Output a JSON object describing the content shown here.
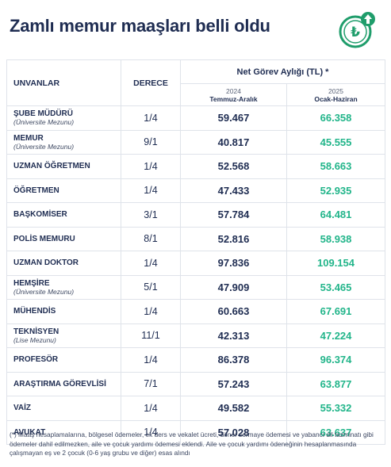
{
  "headline": "Zamlı memur maaşları belli oldu",
  "logo": {
    "icon": "lira-up-arrow-icon",
    "symbol": "₺",
    "color": "#1f9d6b"
  },
  "colors": {
    "title": "#1f2d52",
    "highlight": "#22b58a",
    "border": "#dfe3ea"
  },
  "table": {
    "col_title": "UNVANLAR",
    "col_grade": "DERECE",
    "col_group": "Net Görev Aylığı (TL) *",
    "periods": [
      {
        "year": "2024",
        "range": "Temmuz-Aralık"
      },
      {
        "year": "2025",
        "range": "Ocak-Haziran"
      }
    ],
    "rows": [
      {
        "title": "ŞUBE MÜDÜRÜ",
        "sub": "(Üniversite Mezunu)",
        "grade": "1/4",
        "v2024": "59.467",
        "v2025": "66.358"
      },
      {
        "title": "MEMUR",
        "sub": "(Üniversite Mezunu)",
        "grade": "9/1",
        "v2024": "40.817",
        "v2025": "45.555"
      },
      {
        "title": "UZMAN ÖĞRETMEN",
        "sub": "",
        "grade": "1/4",
        "v2024": "52.568",
        "v2025": "58.663"
      },
      {
        "title": "ÖĞRETMEN",
        "sub": "",
        "grade": "1/4",
        "v2024": "47.433",
        "v2025": "52.935"
      },
      {
        "title": "BAŞKOMİSER",
        "sub": "",
        "grade": "3/1",
        "v2024": "57.784",
        "v2025": "64.481"
      },
      {
        "title": "POLİS MEMURU",
        "sub": "",
        "grade": "8/1",
        "v2024": "52.816",
        "v2025": "58.938"
      },
      {
        "title": "UZMAN DOKTOR",
        "sub": "",
        "grade": "1/4",
        "v2024": "97.836",
        "v2025": "109.154"
      },
      {
        "title": "HEMŞİRE",
        "sub": "(Üniversite Mezunu)",
        "grade": "5/1",
        "v2024": "47.909",
        "v2025": "53.465"
      },
      {
        "title": "MÜHENDİS",
        "sub": "",
        "grade": "1/4",
        "v2024": "60.663",
        "v2025": "67.691"
      },
      {
        "title": "TEKNİSYEN",
        "sub": "(Lise Mezunu)",
        "grade": "11/1",
        "v2024": "42.313",
        "v2025": "47.224"
      },
      {
        "title": "PROFESÖR",
        "sub": "",
        "grade": "1/4",
        "v2024": "86.378",
        "v2025": "96.374"
      },
      {
        "title": "ARAŞTIRMA GÖREVLİSİ",
        "sub": "",
        "grade": "7/1",
        "v2024": "57.243",
        "v2025": "63.877"
      },
      {
        "title": "VAİZ",
        "sub": "",
        "grade": "1/4",
        "v2024": "49.582",
        "v2025": "55.332"
      },
      {
        "title": "AVUKAT",
        "sub": "",
        "grade": "1/4",
        "v2024": "57.028",
        "v2025": "63.637"
      }
    ]
  },
  "footnote": "(*) Maaş hesaplamalarına, bölgesel ödemeler, ek ders ve vekalet ücreti, döner sermaye ödemesi ve yabancı dil tazminatı gibi ödemeler dahil edilmezken, aile ve çocuk yardımı ödemesi eklendi. Aile ve çocuk yardımı ödeneğinin hesaplanmasında çalışmayan eş ve 2 çocuk (0-6 yaş grubu ve diğer) esas alındı"
}
